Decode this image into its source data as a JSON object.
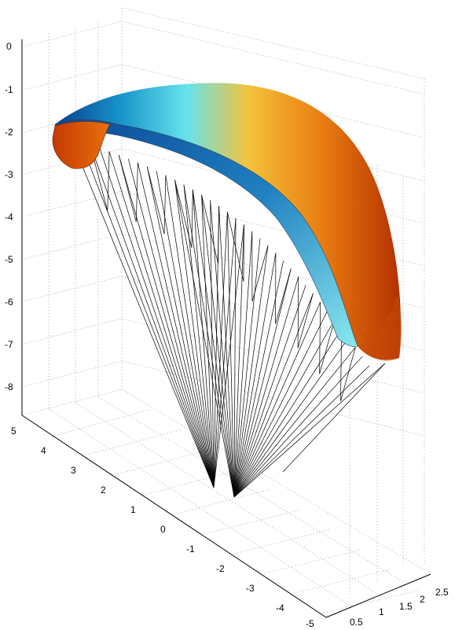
{
  "chart_data": {
    "type": "surface3d",
    "title": "",
    "xlabel": "",
    "ylabel": "",
    "zlabel": "",
    "grid": true,
    "z_ticks": [
      "0",
      "-1",
      "-2",
      "-3",
      "-4",
      "-5",
      "-6",
      "-7",
      "-8"
    ],
    "y_ticks": [
      "5",
      "4",
      "3",
      "2",
      "1",
      "0",
      "-1",
      "-2",
      "-3",
      "-4",
      "-5"
    ],
    "x_ticks": [
      "0.5",
      "1",
      "1.5",
      "2",
      "2.5"
    ],
    "zlim": [
      -8,
      0
    ],
    "ylim": [
      -5,
      5
    ],
    "xlim": [
      0.5,
      2.5
    ],
    "colormap": [
      "#b33000",
      "#e87a10",
      "#f4c23a",
      "#66e3ec",
      "#1590c8",
      "#0a3f8c"
    ],
    "series": [
      {
        "kind": "canopy-surface"
      },
      {
        "kind": "suspension-lines",
        "riser_groups": 2
      }
    ]
  }
}
